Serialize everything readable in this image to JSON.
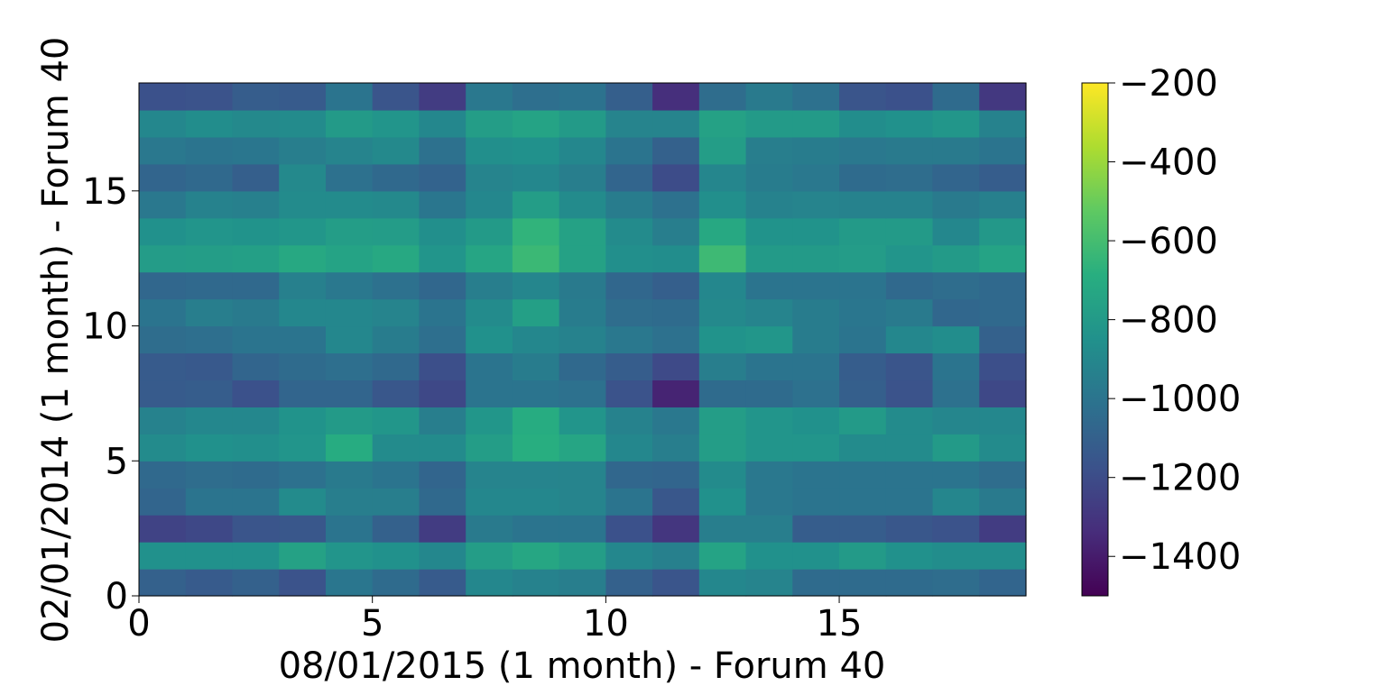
{
  "chart_data": {
    "type": "heatmap",
    "title": "",
    "xlabel": "08/01/2015 (1 month) - Forum 40",
    "ylabel": "02/01/2014 (1 month) - Forum 40",
    "xlim": [
      0,
      19
    ],
    "ylim": [
      0,
      19
    ],
    "x_ticks": [
      0,
      5,
      10,
      15
    ],
    "y_ticks": [
      0,
      5,
      10,
      15
    ],
    "x_tick_labels": [
      "0",
      "5",
      "10",
      "15"
    ],
    "y_tick_labels": [
      "0",
      "5",
      "10",
      "15"
    ],
    "colorbar": {
      "colormap": "viridis",
      "vmin": -1500,
      "vmax": -200,
      "ticks": [
        -200,
        -400,
        -600,
        -800,
        -1000,
        -1200,
        -1400
      ],
      "tick_labels": [
        "−200",
        "−400",
        "−600",
        "−800",
        "−1000",
        "−1200",
        "−1400"
      ]
    },
    "values": [
      [
        -1100,
        -1130,
        -1100,
        -1170,
        -990,
        -1050,
        -1130,
        -900,
        -930,
        -950,
        -1100,
        -1160,
        -900,
        -920,
        -1050,
        -1050,
        -1050,
        -1040,
        -1080
      ],
      [
        -850,
        -850,
        -850,
        -760,
        -830,
        -850,
        -900,
        -780,
        -730,
        -780,
        -900,
        -940,
        -750,
        -850,
        -850,
        -800,
        -850,
        -870,
        -870
      ],
      [
        -1240,
        -1220,
        -1160,
        -1150,
        -1000,
        -1100,
        -1270,
        -970,
        -1000,
        -1000,
        -1180,
        -1300,
        -950,
        -950,
        -1120,
        -1120,
        -1150,
        -1170,
        -1270
      ],
      [
        -1080,
        -1000,
        -1000,
        -880,
        -950,
        -950,
        -1060,
        -900,
        -900,
        -920,
        -1000,
        -1150,
        -850,
        -980,
        -1000,
        -1000,
        -1000,
        -910,
        -970
      ],
      [
        -1060,
        -1040,
        -1050,
        -1020,
        -970,
        -1000,
        -1080,
        -920,
        -920,
        -920,
        -1070,
        -1080,
        -880,
        -980,
        -1000,
        -1000,
        -1000,
        -1000,
        -1040
      ],
      [
        -880,
        -850,
        -860,
        -830,
        -700,
        -880,
        -880,
        -780,
        -690,
        -740,
        -900,
        -950,
        -780,
        -830,
        -830,
        -880,
        -880,
        -800,
        -880
      ],
      [
        -930,
        -900,
        -900,
        -840,
        -800,
        -820,
        -950,
        -820,
        -700,
        -830,
        -930,
        -980,
        -780,
        -830,
        -850,
        -800,
        -880,
        -910,
        -900
      ],
      [
        -1130,
        -1120,
        -1180,
        -1080,
        -1080,
        -1150,
        -1220,
        -1000,
        -1000,
        -1020,
        -1170,
        -1370,
        -1050,
        -1050,
        -1020,
        -1110,
        -1170,
        -1020,
        -1220
      ],
      [
        -1130,
        -1140,
        -1080,
        -1050,
        -1030,
        -1060,
        -1190,
        -1000,
        -960,
        -1060,
        -1120,
        -1210,
        -950,
        -1000,
        -1000,
        -1120,
        -1160,
        -1000,
        -1190
      ],
      [
        -1040,
        -1030,
        -1000,
        -1000,
        -900,
        -960,
        -1030,
        -850,
        -900,
        -930,
        -980,
        -1020,
        -840,
        -820,
        -960,
        -1000,
        -900,
        -870,
        -1100
      ],
      [
        -1000,
        -950,
        -970,
        -900,
        -900,
        -920,
        -1000,
        -880,
        -770,
        -960,
        -1040,
        -1050,
        -890,
        -920,
        -960,
        -990,
        -970,
        -1070,
        -1060
      ],
      [
        -1070,
        -1060,
        -1060,
        -940,
        -980,
        -1020,
        -1070,
        -950,
        -910,
        -970,
        -1070,
        -1110,
        -900,
        -1000,
        -1000,
        -1000,
        -1060,
        -1040,
        -1060
      ],
      [
        -790,
        -780,
        -770,
        -720,
        -750,
        -720,
        -830,
        -740,
        -630,
        -760,
        -860,
        -870,
        -620,
        -800,
        -800,
        -790,
        -830,
        -800,
        -750
      ],
      [
        -850,
        -830,
        -840,
        -820,
        -780,
        -790,
        -860,
        -800,
        -660,
        -760,
        -880,
        -950,
        -720,
        -840,
        -840,
        -800,
        -800,
        -900,
        -810
      ],
      [
        -980,
        -930,
        -940,
        -880,
        -880,
        -890,
        -990,
        -900,
        -780,
        -880,
        -960,
        -1020,
        -860,
        -930,
        -920,
        -930,
        -930,
        -970,
        -940
      ],
      [
        -1080,
        -1060,
        -1110,
        -890,
        -1020,
        -1060,
        -1090,
        -920,
        -900,
        -950,
        -1080,
        -1200,
        -910,
        -960,
        -980,
        -1050,
        -1040,
        -1080,
        -1120
      ],
      [
        -980,
        -1000,
        -990,
        -950,
        -920,
        -890,
        -1020,
        -860,
        -850,
        -900,
        -1000,
        -1100,
        -780,
        -950,
        -960,
        -980,
        -970,
        -970,
        -1000
      ],
      [
        -900,
        -870,
        -890,
        -880,
        -800,
        -830,
        -900,
        -780,
        -750,
        -800,
        -920,
        -920,
        -760,
        -800,
        -800,
        -870,
        -850,
        -820,
        -930
      ],
      [
        -1180,
        -1170,
        -1120,
        -1130,
        -1000,
        -1160,
        -1270,
        -980,
        -1030,
        -1010,
        -1110,
        -1330,
        -1040,
        -970,
        -1020,
        -1160,
        -1180,
        -1050,
        -1290
      ]
    ]
  }
}
